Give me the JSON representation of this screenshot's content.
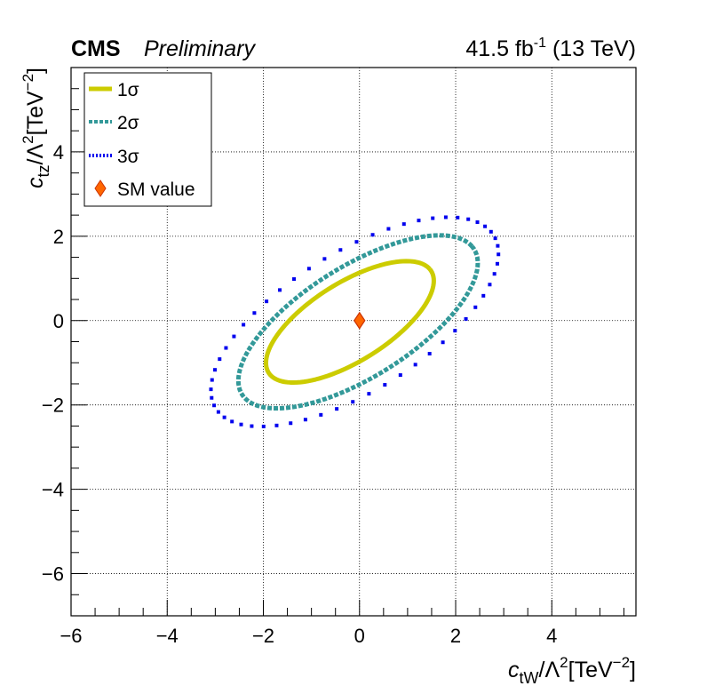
{
  "header": {
    "experiment": "CMS",
    "status": "Preliminary",
    "lumi_value": "41.5 fb",
    "lumi_unit_sup": "-1",
    "energy": " (13 TeV)"
  },
  "colors": {
    "one_sigma": "#cccc00",
    "two_sigma": "#339999",
    "three_sigma": "#0000ee",
    "sm_fill": "#ff6600",
    "sm_edge": "#cc3300",
    "grid": "#000000"
  },
  "chart_data": {
    "type": "scatter",
    "title": "",
    "xlabel": {
      "base": "c",
      "sub": "tW",
      "mid": "/Λ",
      "sup1": "2",
      "rest": "[TeV",
      "sup2": "−2",
      "end": "]"
    },
    "ylabel": {
      "base": "c",
      "sub": "tz",
      "mid": "/Λ",
      "sup1": "2",
      "rest": "[TeV",
      "sup2": "−2",
      "end": "]"
    },
    "xlim": [
      -6,
      5.75
    ],
    "ylim": [
      -7,
      6
    ],
    "x_ticks": [
      -6,
      -4,
      -2,
      0,
      2,
      4
    ],
    "x_tick_labels": [
      "−6",
      "−4",
      "−2",
      "0",
      "2",
      "4"
    ],
    "y_ticks": [
      -6,
      -4,
      -2,
      0,
      2,
      4
    ],
    "y_tick_labels": [
      "−6",
      "−4",
      "−2",
      "0",
      "2",
      "4"
    ],
    "grid": true,
    "legend_position": "top-left",
    "legend": [
      {
        "label": "1σ",
        "style": "line"
      },
      {
        "label": "2σ",
        "style": "dashed"
      },
      {
        "label": "3σ",
        "style": "dotted"
      },
      {
        "label": "SM value",
        "style": "marker"
      }
    ],
    "series": [
      {
        "name": "1σ",
        "contour": {
          "center": [
            -0.2,
            -0.03
          ],
          "a": 2.08,
          "b": 0.89,
          "angle_deg": 37
        }
      },
      {
        "name": "2σ",
        "contour": {
          "center": [
            -0.03,
            -0.03
          ],
          "a": 2.97,
          "b": 1.26,
          "angle_deg": 37
        }
      },
      {
        "name": "3σ",
        "contour": {
          "center": [
            -0.1,
            -0.03
          ],
          "a": 3.55,
          "b": 1.58,
          "angle_deg": 37
        }
      },
      {
        "name": "SM value",
        "points": [
          {
            "x": 0,
            "y": 0
          }
        ]
      }
    ]
  }
}
